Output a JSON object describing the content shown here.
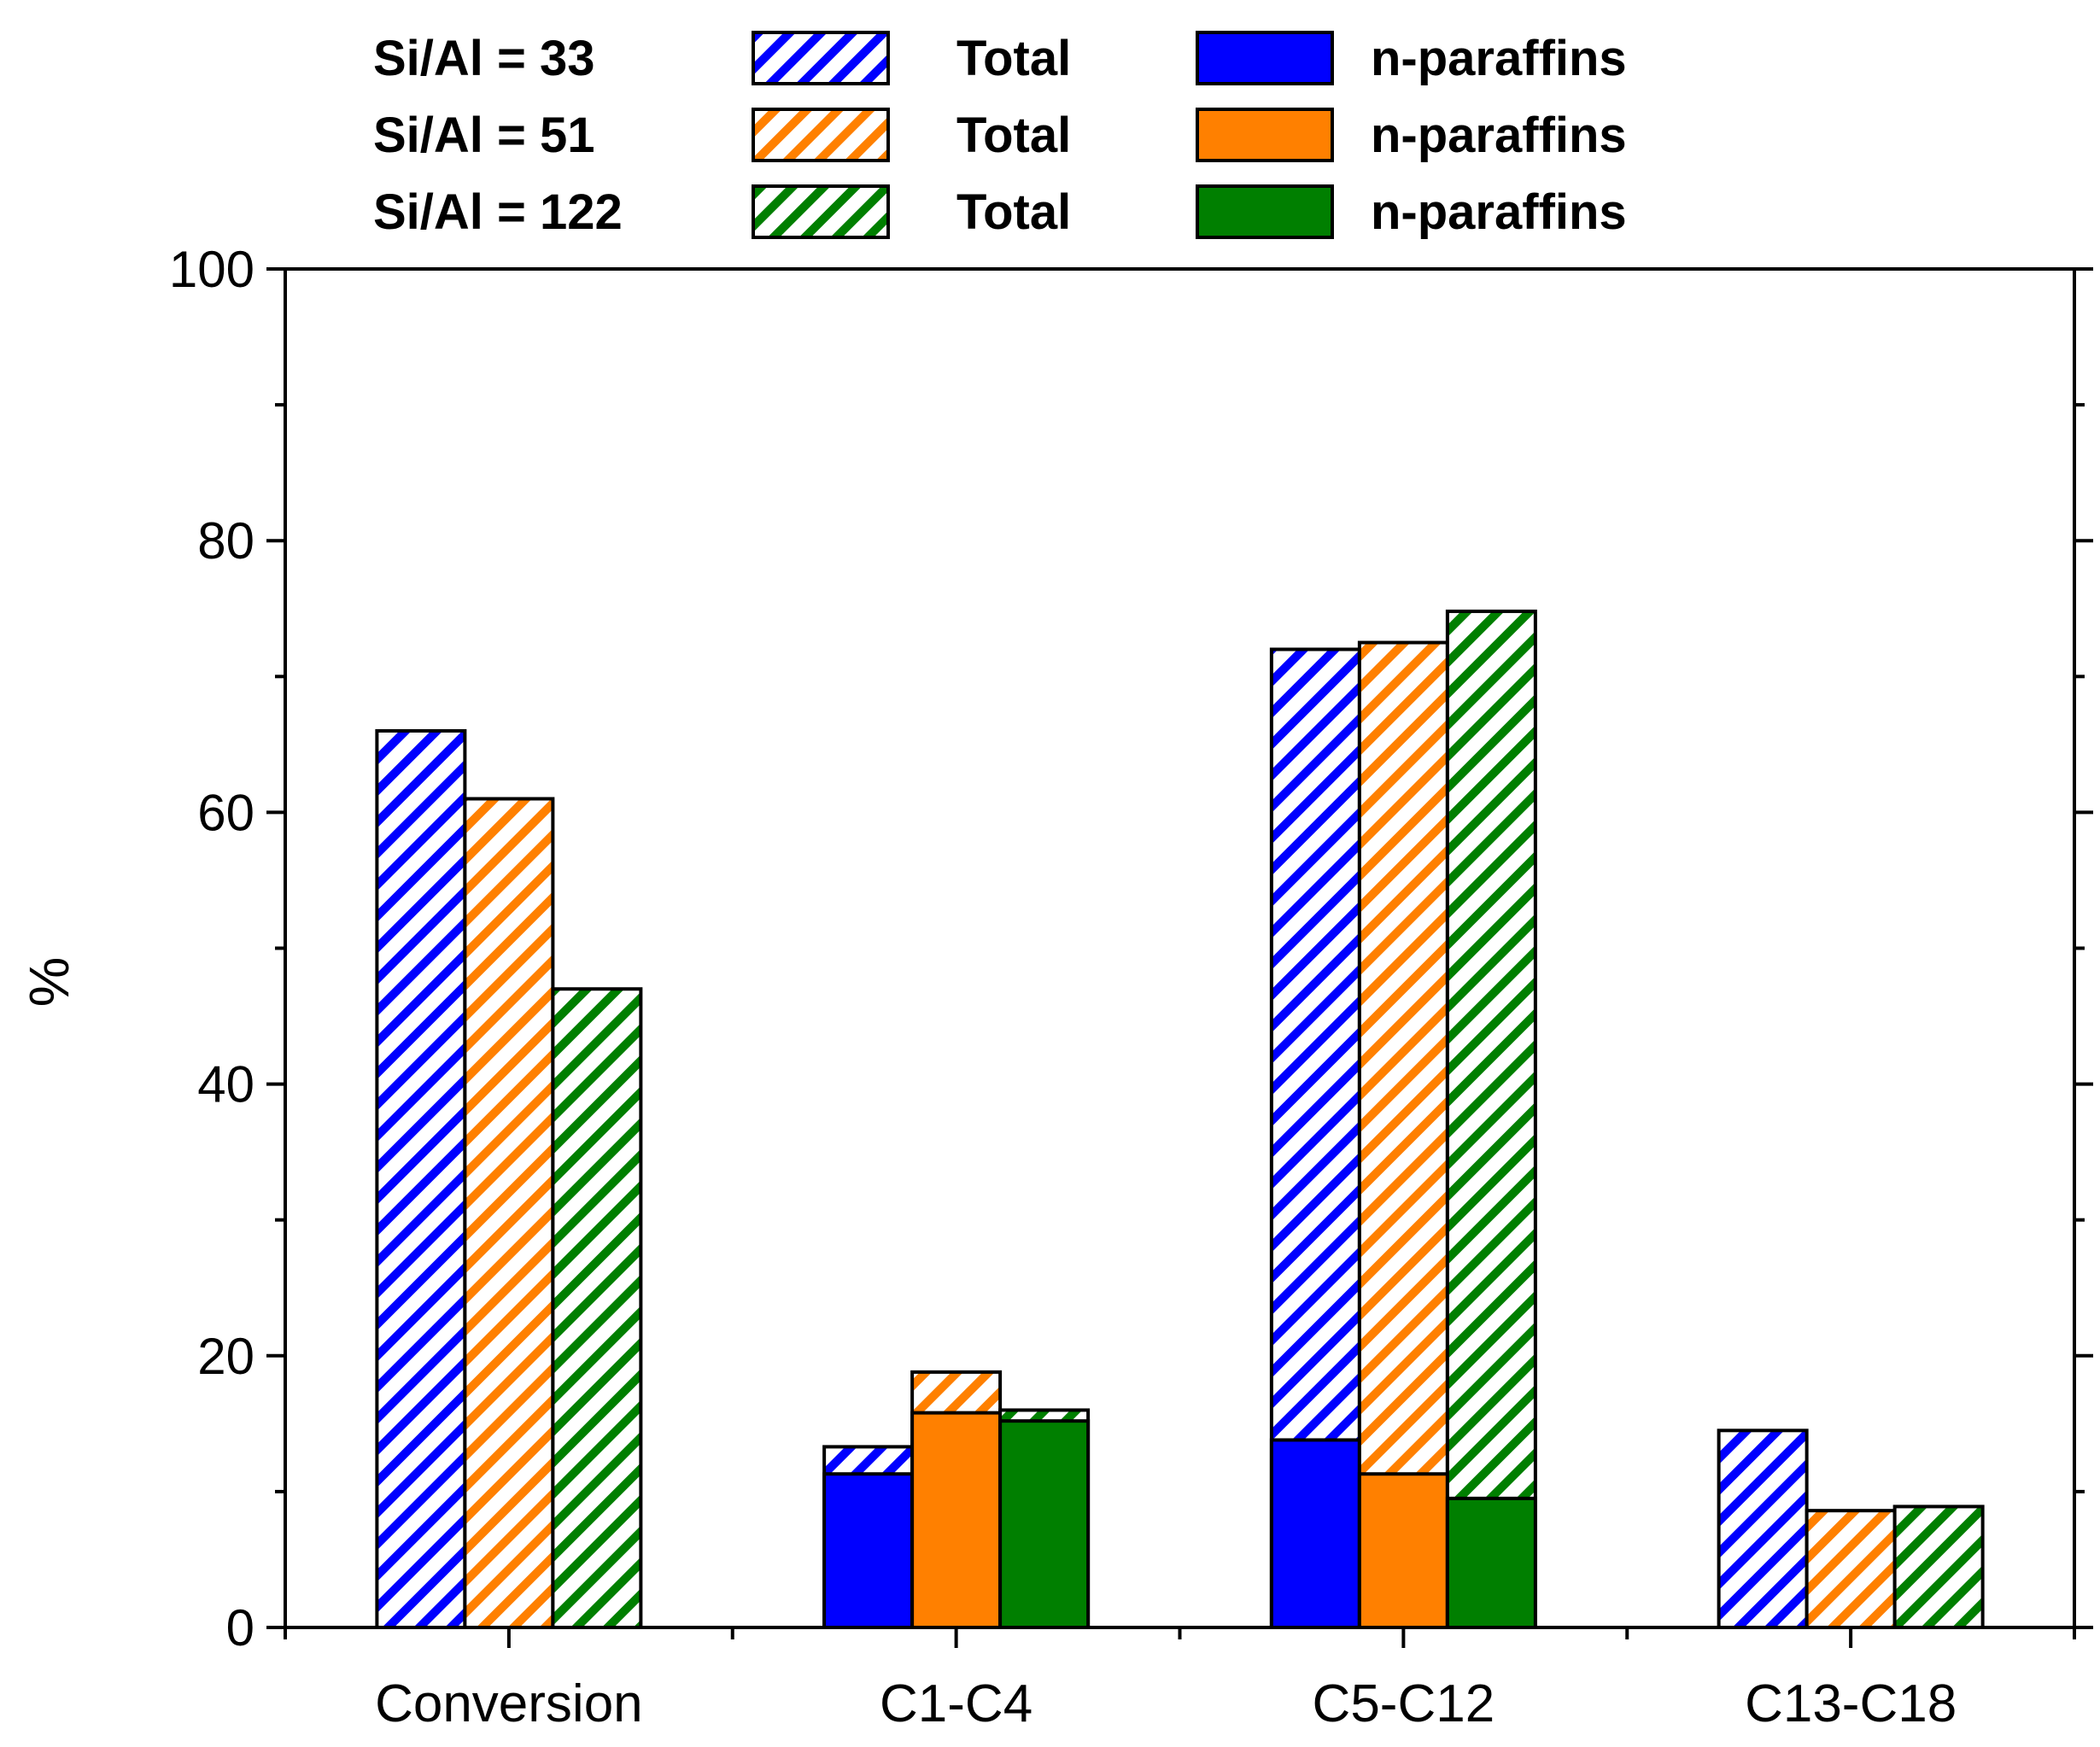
{
  "chart_data": {
    "type": "bar",
    "title": "",
    "xlabel": "",
    "ylabel": "%",
    "ylim": [
      0,
      100
    ],
    "yticks": [
      0,
      20,
      40,
      60,
      80,
      100
    ],
    "categories": [
      "Conversion",
      "C1-C4",
      "C5-C12",
      "C13-C18"
    ],
    "series": [
      {
        "name": "Si/Al = 33",
        "color": "#0000ff",
        "total_label": "Total",
        "nparaffins_label": "n-paraffins",
        "total": [
          66,
          13.3,
          72,
          14.5
        ],
        "n_paraffins": [
          null,
          11.3,
          13.8,
          null
        ]
      },
      {
        "name": "Si/Al = 51",
        "color": "#ff8000",
        "total_label": "Total",
        "nparaffins_label": "n-paraffins",
        "total": [
          61,
          18.8,
          72.5,
          8.6
        ],
        "n_paraffins": [
          null,
          15.8,
          11.3,
          null
        ]
      },
      {
        "name": "Si/Al = 122",
        "color": "#007f00",
        "total_label": "Total",
        "nparaffins_label": "n-paraffins",
        "total": [
          47,
          16,
          74.8,
          8.9
        ],
        "n_paraffins": [
          null,
          15.2,
          9.5,
          null
        ]
      }
    ],
    "legend_position": "top"
  }
}
